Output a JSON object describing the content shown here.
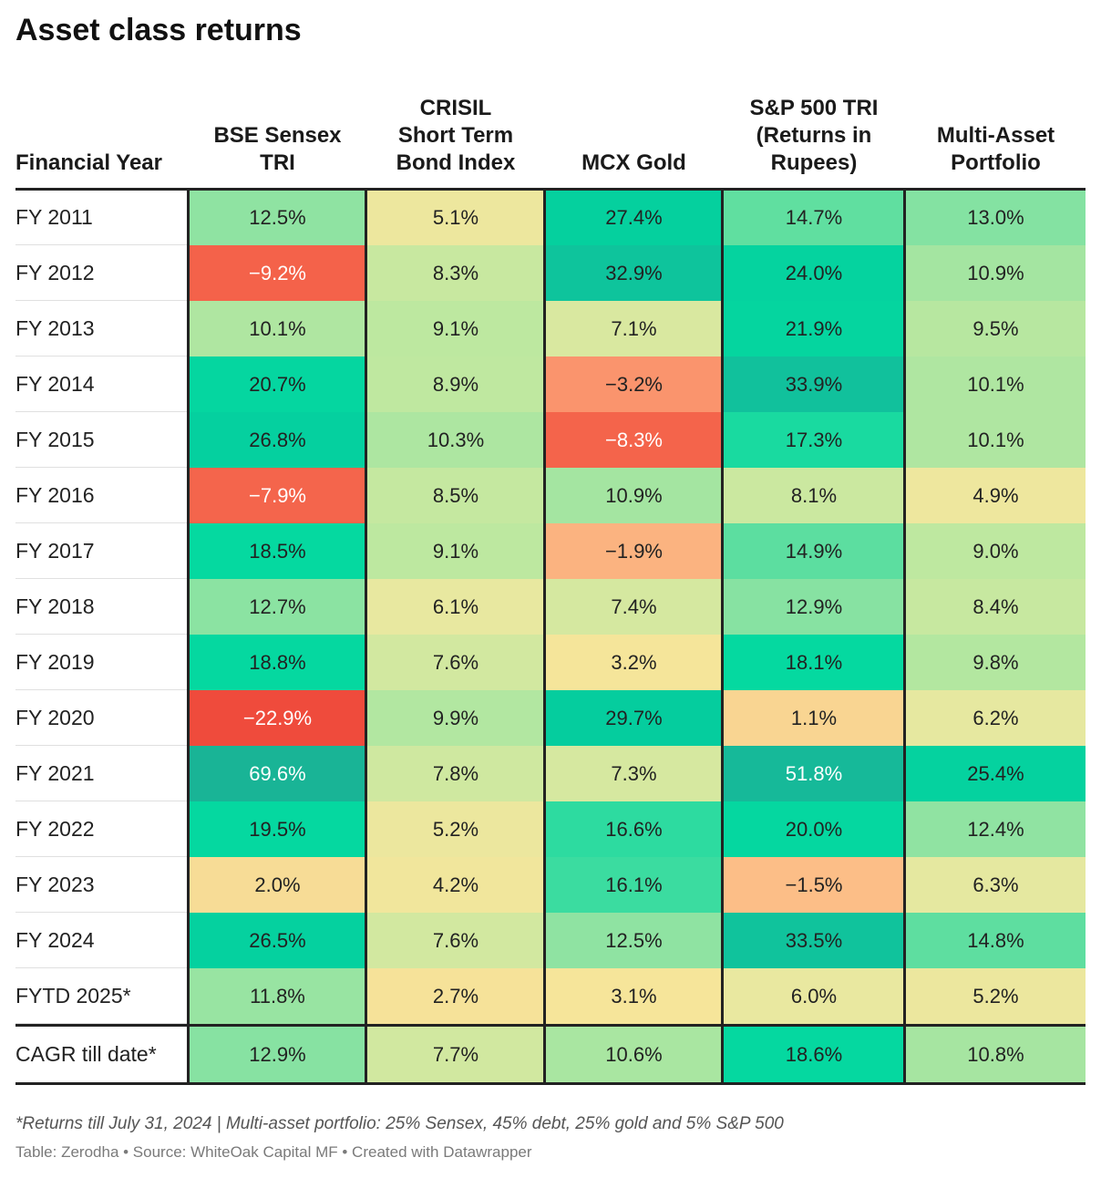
{
  "chart_data": {
    "type": "table",
    "title": "Asset class returns",
    "columns": [
      "Financial Year",
      "BSE Sensex TRI",
      "CRISIL Short Term Bond Index",
      "MCX Gold",
      "S&P 500 TRI (Returns in Rupees)",
      "Multi-Asset Portfolio"
    ],
    "header_lines": [
      [
        "Financial Year"
      ],
      [
        "BSE Sensex",
        "TRI"
      ],
      [
        "CRISIL",
        "Short Term",
        "Bond Index"
      ],
      [
        "MCX Gold"
      ],
      [
        "S&P 500 TRI",
        "(Returns in",
        "Rupees)"
      ],
      [
        "Multi-Asset",
        "Portfolio"
      ]
    ],
    "rows": [
      {
        "year": "FY 2011",
        "values": [
          12.5,
          5.1,
          27.4,
          14.7,
          13.0
        ],
        "text": [
          "12.5%",
          "5.1%",
          "27.4%",
          "14.7%",
          "13.0%"
        ]
      },
      {
        "year": "FY 2012",
        "values": [
          -9.2,
          8.3,
          32.9,
          24.0,
          10.9
        ],
        "text": [
          "−9.2%",
          "8.3%",
          "32.9%",
          "24.0%",
          "10.9%"
        ]
      },
      {
        "year": "FY 2013",
        "values": [
          10.1,
          9.1,
          7.1,
          21.9,
          9.5
        ],
        "text": [
          "10.1%",
          "9.1%",
          "7.1%",
          "21.9%",
          "9.5%"
        ]
      },
      {
        "year": "FY 2014",
        "values": [
          20.7,
          8.9,
          -3.2,
          33.9,
          10.1
        ],
        "text": [
          "20.7%",
          "8.9%",
          "−3.2%",
          "33.9%",
          "10.1%"
        ]
      },
      {
        "year": "FY 2015",
        "values": [
          26.8,
          10.3,
          -8.3,
          17.3,
          10.1
        ],
        "text": [
          "26.8%",
          "10.3%",
          "−8.3%",
          "17.3%",
          "10.1%"
        ]
      },
      {
        "year": "FY 2016",
        "values": [
          -7.9,
          8.5,
          10.9,
          8.1,
          4.9
        ],
        "text": [
          "−7.9%",
          "8.5%",
          "10.9%",
          "8.1%",
          "4.9%"
        ]
      },
      {
        "year": "FY 2017",
        "values": [
          18.5,
          9.1,
          -1.9,
          14.9,
          9.0
        ],
        "text": [
          "18.5%",
          "9.1%",
          "−1.9%",
          "14.9%",
          "9.0%"
        ]
      },
      {
        "year": "FY 2018",
        "values": [
          12.7,
          6.1,
          7.4,
          12.9,
          8.4
        ],
        "text": [
          "12.7%",
          "6.1%",
          "7.4%",
          "12.9%",
          "8.4%"
        ]
      },
      {
        "year": "FY 2019",
        "values": [
          18.8,
          7.6,
          3.2,
          18.1,
          9.8
        ],
        "text": [
          "18.8%",
          "7.6%",
          "3.2%",
          "18.1%",
          "9.8%"
        ]
      },
      {
        "year": "FY 2020",
        "values": [
          -22.9,
          9.9,
          29.7,
          1.1,
          6.2
        ],
        "text": [
          "−22.9%",
          "9.9%",
          "29.7%",
          "1.1%",
          "6.2%"
        ]
      },
      {
        "year": "FY 2021",
        "values": [
          69.6,
          7.8,
          7.3,
          51.8,
          25.4
        ],
        "text": [
          "69.6%",
          "7.8%",
          "7.3%",
          "51.8%",
          "25.4%"
        ]
      },
      {
        "year": "FY 2022",
        "values": [
          19.5,
          5.2,
          16.6,
          20.0,
          12.4
        ],
        "text": [
          "19.5%",
          "5.2%",
          "16.6%",
          "20.0%",
          "12.4%"
        ]
      },
      {
        "year": "FY 2023",
        "values": [
          2.0,
          4.2,
          16.1,
          -1.5,
          6.3
        ],
        "text": [
          "2.0%",
          "4.2%",
          "16.1%",
          "−1.5%",
          "6.3%"
        ]
      },
      {
        "year": "FY 2024",
        "values": [
          26.5,
          7.6,
          12.5,
          33.5,
          14.8
        ],
        "text": [
          "26.5%",
          "7.6%",
          "12.5%",
          "33.5%",
          "14.8%"
        ]
      },
      {
        "year": "FYTD 2025*",
        "values": [
          11.8,
          2.7,
          3.1,
          6.0,
          5.2
        ],
        "text": [
          "11.8%",
          "2.7%",
          "3.1%",
          "6.0%",
          "5.2%"
        ]
      }
    ],
    "summary_row": {
      "year": "CAGR till date*",
      "values": [
        12.9,
        7.7,
        10.6,
        18.6,
        10.8
      ],
      "text": [
        "12.9%",
        "7.7%",
        "10.6%",
        "18.6%",
        "10.8%"
      ]
    },
    "color_scale": {
      "low": "#ef4b3c",
      "mid_low": "#fcb882",
      "mid": "#f5e79a",
      "mid_high": "#8fe3a2",
      "high": "#00d9a0",
      "top": "#0cbd9a"
    }
  },
  "footnote": "*Returns till July 31, 2024 | Multi-asset portfolio: 25% Sensex, 45% debt, 25% gold and 5% S&P 500",
  "credits": "Table: Zerodha • Source: WhiteOak Capital MF • Created with Datawrapper"
}
